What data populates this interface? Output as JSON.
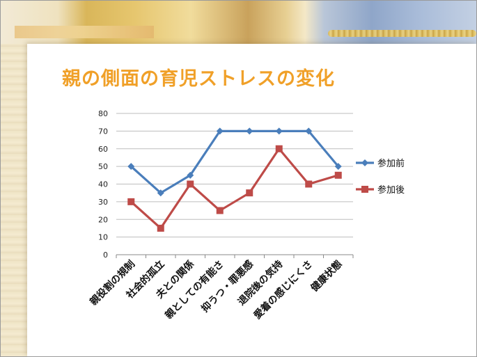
{
  "slide": {
    "title": "親の側面の育児ストレスの変化"
  },
  "chart_data": {
    "type": "line",
    "title": "",
    "xlabel": "",
    "ylabel": "",
    "ylim": [
      0,
      80
    ],
    "yticks": [
      0,
      10,
      20,
      30,
      40,
      50,
      60,
      70,
      80
    ],
    "grid": true,
    "legend_position": "right",
    "categories": [
      "親役割の規制",
      "社会的孤立",
      "夫との関係",
      "親としての有能さ",
      "抑うつ・罪悪感",
      "退院後の気持",
      "愛着の感じにくさ",
      "健康状態"
    ],
    "series": [
      {
        "name": "参加前",
        "values": [
          50,
          35,
          45,
          70,
          70,
          70,
          70,
          50
        ],
        "color": "#4a7ebb",
        "marker": "diamond"
      },
      {
        "name": "参加後",
        "values": [
          30,
          15,
          40,
          25,
          35,
          60,
          40,
          45
        ],
        "color": "#be4b48",
        "marker": "square"
      }
    ]
  }
}
